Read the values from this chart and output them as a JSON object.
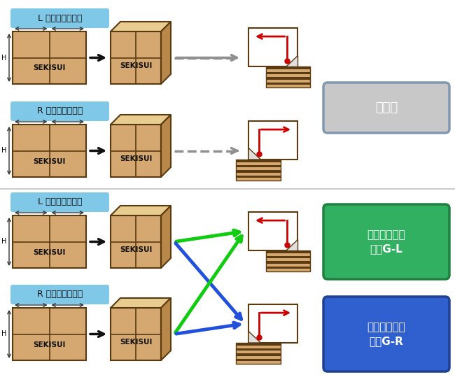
{
  "bg_color": "#ffffff",
  "box_fill": "#d4a870",
  "box_stroke": "#5a3a10",
  "box_dark": "#b8884a",
  "box_top": "#e8cc90",
  "label_bg": "#80c8e8",
  "gray_btn_fill": "#c8c8c8",
  "gray_btn_stroke": "#8098b0",
  "green_btn_fill": "#30b060",
  "green_btn_stroke": "#208040",
  "blue_btn_fill": "#3060d0",
  "blue_btn_stroke": "#204090",
  "red_color": "#cc0000",
  "green_arrow_color": "#10cc10",
  "blue_arrow_color": "#2050dd",
  "dashed_color": "#909090",
  "black_color": "#111111",
  "stripe_color": "#5a3a10",
  "label_L_top": "L 型箱・左起こし",
  "label_R_top": "R 型箱・右起こし",
  "label_L_bot": "L 型箱・左起こし",
  "label_R_bot": "R 型箱・右起こし",
  "btn_gray_text": "従来機",
  "btn_green_text": "ワークメイト\n２３G-L",
  "btn_blue_text": "ワークメイト\n２３G-R",
  "sekisui": "SEKISUI"
}
